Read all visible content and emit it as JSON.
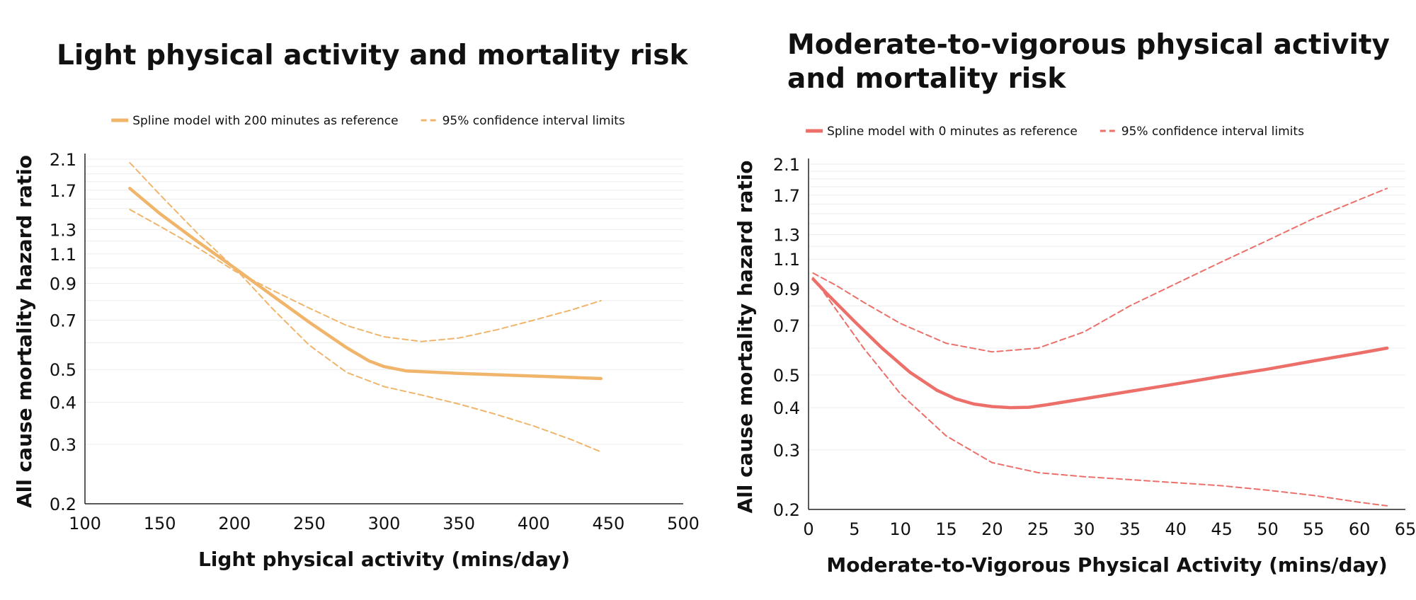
{
  "chart_data": [
    {
      "type": "line",
      "title": "Light physical activity and mortality risk",
      "xlabel": "Light physical activity (mins/day)",
      "ylabel": "All cause mortality hazard ratio",
      "xlim": [
        100,
        500
      ],
      "xticks": [
        100,
        150,
        200,
        250,
        300,
        350,
        400,
        450,
        500
      ],
      "ylim": [
        0.2,
        2.1
      ],
      "yscale": "log",
      "yticks": [
        0.2,
        0.3,
        0.4,
        0.5,
        0.7,
        0.9,
        1.1,
        1.3,
        1.7,
        2.1
      ],
      "grid": true,
      "legend_position": "top",
      "color": "#f0b56a",
      "series": [
        {
          "name": "Spline model with 200 minutes as reference",
          "style": "solid",
          "x": [
            130,
            150,
            175,
            200,
            225,
            250,
            275,
            290,
            300,
            315,
            350,
            400,
            445
          ],
          "y": [
            1.72,
            1.45,
            1.2,
            1.0,
            0.83,
            0.69,
            0.58,
            0.53,
            0.51,
            0.495,
            0.487,
            0.478,
            0.47
          ]
        },
        {
          "name": "95% confidence interval limits",
          "style": "dashed",
          "x": [
            130,
            150,
            175,
            200,
            225,
            250,
            275,
            300,
            325,
            350,
            375,
            400,
            425,
            445
          ],
          "y": [
            2.05,
            1.65,
            1.27,
            1.0,
            0.76,
            0.59,
            0.49,
            0.445,
            0.42,
            0.395,
            0.368,
            0.34,
            0.31,
            0.285
          ]
        },
        {
          "name": "",
          "style": "dashed",
          "x": [
            130,
            150,
            175,
            200,
            225,
            250,
            275,
            300,
            325,
            350,
            375,
            400,
            425,
            445
          ],
          "y": [
            1.49,
            1.33,
            1.15,
            0.98,
            0.86,
            0.76,
            0.675,
            0.625,
            0.605,
            0.62,
            0.655,
            0.7,
            0.75,
            0.8
          ]
        }
      ]
    },
    {
      "type": "line",
      "title": "Moderate-to-vigorous physical activity and mortality risk",
      "xlabel": "Moderate-to-Vigorous Physical Activity (mins/day)",
      "ylabel": "All cause mortality hazard ratio",
      "xlim": [
        0,
        65
      ],
      "xticks": [
        0,
        5,
        10,
        15,
        20,
        25,
        30,
        35,
        40,
        45,
        50,
        55,
        60,
        65
      ],
      "ylim": [
        0.2,
        2.1
      ],
      "yscale": "log",
      "yticks": [
        0.2,
        0.3,
        0.4,
        0.5,
        0.7,
        0.9,
        1.1,
        1.3,
        1.7,
        2.1
      ],
      "grid": true,
      "legend_position": "top",
      "color": "#ec6f69",
      "series": [
        {
          "name": "Spline model with 0 minutes as reference",
          "style": "solid",
          "x": [
            0.5,
            2,
            5,
            8,
            11,
            14,
            16,
            18,
            20,
            22,
            24,
            26,
            30,
            35,
            40,
            45,
            50,
            55,
            60,
            63
          ],
          "y": [
            0.96,
            0.87,
            0.72,
            0.6,
            0.51,
            0.45,
            0.425,
            0.41,
            0.403,
            0.4,
            0.401,
            0.408,
            0.425,
            0.447,
            0.47,
            0.495,
            0.52,
            0.55,
            0.58,
            0.6
          ]
        },
        {
          "name": "95% confidence interval limits",
          "style": "dashed",
          "x": [
            0.5,
            3,
            6,
            10,
            15,
            20,
            25,
            30,
            35,
            40,
            45,
            50,
            55,
            60,
            63
          ],
          "y": [
            1.0,
            0.92,
            0.82,
            0.71,
            0.62,
            0.585,
            0.6,
            0.67,
            0.8,
            0.93,
            1.08,
            1.25,
            1.45,
            1.65,
            1.78
          ]
        },
        {
          "name": "",
          "style": "dashed",
          "x": [
            0.5,
            3,
            6,
            10,
            15,
            20,
            25,
            30,
            35,
            40,
            45,
            50,
            55,
            60,
            63
          ],
          "y": [
            0.97,
            0.78,
            0.6,
            0.44,
            0.33,
            0.275,
            0.257,
            0.25,
            0.245,
            0.24,
            0.235,
            0.228,
            0.22,
            0.21,
            0.205
          ]
        }
      ]
    }
  ]
}
